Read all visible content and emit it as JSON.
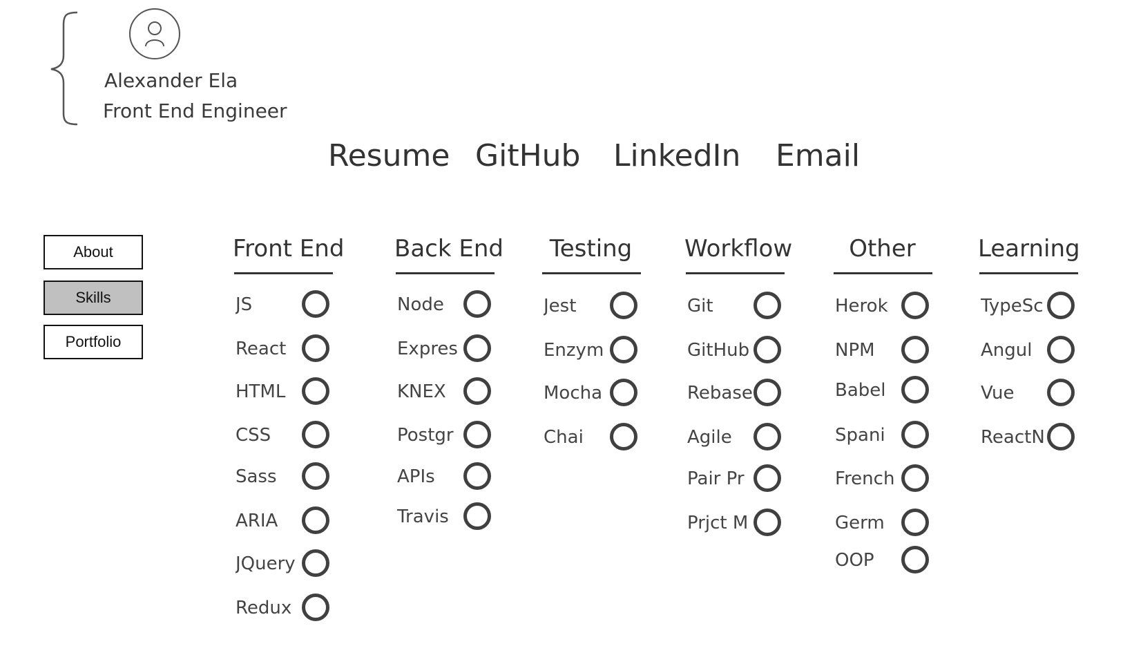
{
  "profile": {
    "name": "Alexander Ela",
    "role": "Front End Engineer"
  },
  "top_nav": [
    "Resume",
    "GitHub",
    "LinkedIn",
    "Email"
  ],
  "side_nav": {
    "items": [
      "About",
      "Skills",
      "Portfolio"
    ],
    "active": "Skills"
  },
  "skill_columns": [
    {
      "title": "Front End",
      "skills": [
        "JS",
        "React",
        "HTML",
        "CSS",
        "Sass",
        "ARIA",
        "JQuery",
        "Redux"
      ]
    },
    {
      "title": "Back End",
      "skills": [
        "Node",
        "Expres",
        "KNEX",
        "Postgr",
        "APIs",
        "Travis"
      ]
    },
    {
      "title": "Testing",
      "skills": [
        "Jest",
        "Enzym",
        "Mocha",
        "Chai"
      ]
    },
    {
      "title": "Workflow",
      "skills": [
        "Git",
        "GitHub",
        "Rebase",
        "Agile",
        "Pair Pr",
        "Prjct M"
      ]
    },
    {
      "title": "Other",
      "skills": [
        "Herok",
        "NPM",
        "Babel",
        "Spani",
        "French",
        "Germ",
        "OOP"
      ]
    },
    {
      "title": "Learning",
      "skills": [
        "TypeSc",
        "Angul",
        "Vue",
        "ReactN"
      ]
    }
  ],
  "icons": {
    "avatar": "user-icon",
    "brace": "curly-brace-icon",
    "skill_marker": "radio-circle-icon"
  }
}
